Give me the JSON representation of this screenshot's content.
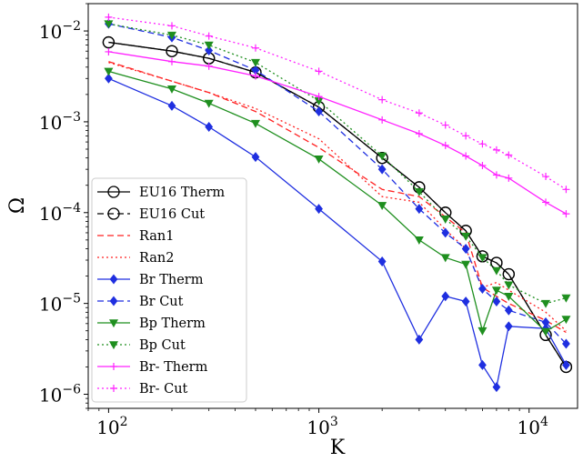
{
  "chart_data": {
    "type": "line",
    "xscale": "log",
    "yscale": "log",
    "xlabel": "K",
    "ylabel": "Ω",
    "xlim": [
      80,
      17000
    ],
    "ylim": [
      7e-07,
      0.02
    ],
    "legend_position": "lower-left",
    "x_ticks": [
      {
        "value": 100,
        "base": "10",
        "exp": "2"
      },
      {
        "value": 1000,
        "base": "10",
        "exp": "3"
      },
      {
        "value": 10000,
        "base": "10",
        "exp": "4"
      }
    ],
    "y_ticks": [
      {
        "value": 1e-06,
        "base": "10",
        "exp": "−6"
      },
      {
        "value": 1e-05,
        "base": "10",
        "exp": "−5"
      },
      {
        "value": 0.0001,
        "base": "10",
        "exp": "−4"
      },
      {
        "value": 0.001,
        "base": "10",
        "exp": "−3"
      },
      {
        "value": 0.01,
        "base": "10",
        "exp": "−2"
      }
    ],
    "series": [
      {
        "name": "EU16 Therm",
        "color": "#000000",
        "linestyle": "solid",
        "marker": "circle-open",
        "x": [
          100,
          200,
          300,
          500,
          1000,
          2000,
          3000,
          4000,
          5000,
          6000,
          7000,
          8000,
          12000,
          15000
        ],
        "y": [
          0.0075,
          0.006,
          0.005,
          0.0035,
          0.00145,
          0.0004,
          0.00019,
          0.0001,
          6.3e-05,
          3.3e-05,
          2.8e-05,
          2.1e-05,
          4.5e-06,
          2e-06
        ]
      },
      {
        "name": "EU16 Cut",
        "color": "#000000",
        "linestyle": "dashed",
        "marker": "circle-open",
        "x": [
          100,
          200,
          300,
          500,
          1000,
          2000,
          3000,
          4000,
          5000,
          6000,
          7000,
          8000,
          12000,
          15000
        ],
        "y": [
          0.0075,
          0.006,
          0.005,
          0.0035,
          0.00145,
          0.0004,
          0.00019,
          0.0001,
          6.3e-05,
          3.3e-05,
          2.8e-05,
          2.1e-05,
          4.5e-06,
          2e-06
        ]
      },
      {
        "name": "Ran1",
        "color": "#ff2222",
        "linestyle": "dashed",
        "marker": "none",
        "x": [
          100,
          200,
          300,
          500,
          1000,
          2000,
          3000,
          4000,
          5000,
          6000,
          7000,
          8000,
          12000,
          15000
        ],
        "y": [
          0.0046,
          0.0028,
          0.0021,
          0.0013,
          0.00052,
          0.00018,
          0.00015,
          9e-05,
          6e-05,
          1.5e-05,
          1.2e-05,
          1e-05,
          6.5e-06,
          4.8e-06
        ]
      },
      {
        "name": "Ran2",
        "color": "#ff2222",
        "linestyle": "dotted",
        "marker": "none",
        "x": [
          100,
          200,
          300,
          500,
          1000,
          2000,
          3000,
          4000,
          5000,
          6000,
          7000,
          8000,
          12000,
          15000
        ],
        "y": [
          0.0045,
          0.0028,
          0.0021,
          0.0014,
          0.00065,
          0.00015,
          0.00013,
          6.5e-05,
          4e-05,
          1.5e-05,
          1.7e-05,
          1.4e-05,
          8e-06,
          5e-06
        ]
      },
      {
        "name": "Br Therm",
        "color": "#1f2fe0",
        "linestyle": "solid",
        "marker": "diamond",
        "x": [
          100,
          200,
          300,
          500,
          1000,
          2000,
          3000,
          4000,
          5000,
          6000,
          7000,
          8000,
          12000,
          15000
        ],
        "y": [
          0.003,
          0.0015,
          0.00088,
          0.00041,
          0.00011,
          2.9e-05,
          4e-06,
          1.2e-05,
          1.05e-05,
          2.1e-06,
          1.2e-06,
          5.6e-06,
          5.3e-06,
          2.1e-06
        ]
      },
      {
        "name": "Br Cut",
        "color": "#1f2fe0",
        "linestyle": "dashed",
        "marker": "diamond",
        "x": [
          100,
          200,
          300,
          500,
          1000,
          2000,
          3000,
          4000,
          5000,
          6000,
          7000,
          8000,
          12000,
          15000
        ],
        "y": [
          0.012,
          0.0085,
          0.0061,
          0.0037,
          0.0013,
          0.0003,
          0.00011,
          6e-05,
          4e-05,
          1.45e-05,
          1.05e-05,
          8.4e-06,
          6.2e-06,
          3.6e-06
        ]
      },
      {
        "name": "Bp Therm",
        "color": "#1f8f1f",
        "linestyle": "solid",
        "marker": "triangle-down",
        "x": [
          100,
          200,
          300,
          500,
          1000,
          2000,
          3000,
          4000,
          5000,
          6000,
          7000,
          8000,
          12000,
          15000
        ],
        "y": [
          0.0036,
          0.0023,
          0.0016,
          0.00096,
          0.00039,
          0.00012,
          5e-05,
          3.2e-05,
          2.7e-05,
          5e-06,
          1.4e-05,
          1.2e-05,
          4.9e-06,
          6.7e-06
        ]
      },
      {
        "name": "Bp Cut",
        "color": "#1f8f1f",
        "linestyle": "dotted",
        "marker": "triangle-down",
        "x": [
          100,
          200,
          300,
          500,
          1000,
          2000,
          3000,
          4000,
          5000,
          6000,
          7000,
          8000,
          12000,
          15000
        ],
        "y": [
          0.012,
          0.009,
          0.007,
          0.0045,
          0.0017,
          0.00042,
          0.00017,
          8.5e-05,
          5.5e-05,
          3.2e-05,
          2.3e-05,
          1.6e-05,
          1e-05,
          1.15e-05
        ]
      },
      {
        "name": "Br- Therm",
        "color": "#ff22ff",
        "linestyle": "solid",
        "marker": "plus",
        "x": [
          100,
          200,
          300,
          500,
          1000,
          2000,
          3000,
          4000,
          5000,
          6000,
          7000,
          8000,
          12000,
          15000
        ],
        "y": [
          0.0059,
          0.0046,
          0.0041,
          0.0032,
          0.0019,
          0.00105,
          0.00074,
          0.00055,
          0.00042,
          0.00033,
          0.00026,
          0.00024,
          0.00013,
          9.7e-05
        ]
      },
      {
        "name": "Br- Cut",
        "color": "#ff22ff",
        "linestyle": "dotted",
        "marker": "plus",
        "x": [
          100,
          200,
          300,
          500,
          1000,
          2000,
          3000,
          4000,
          5000,
          6000,
          7000,
          8000,
          12000,
          15000
        ],
        "y": [
          0.0142,
          0.0114,
          0.0088,
          0.0065,
          0.0036,
          0.00175,
          0.00125,
          0.00092,
          0.0007,
          0.00057,
          0.00049,
          0.00043,
          0.00025,
          0.00018
        ]
      }
    ]
  }
}
